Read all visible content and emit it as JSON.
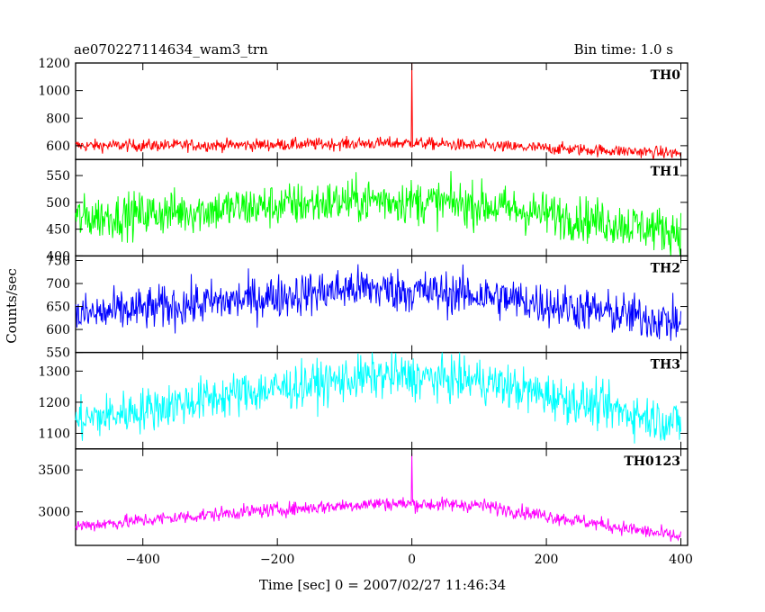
{
  "header": {
    "title": "ae070227114634_wam3_trn",
    "bin_time": "Bin time: 1.0 s"
  },
  "chart_data": {
    "type": "line",
    "xlabel": "Time [sec] 0 = 2007/02/27 11:46:34",
    "ylabel": "Counts/sec",
    "xlim": [
      -500,
      410
    ],
    "xticks": [
      -400,
      -200,
      0,
      200,
      400
    ],
    "xtick_labels": [
      "−400",
      "−200",
      "0",
      "200",
      "400"
    ],
    "data_range": [
      -500,
      400
    ],
    "grid": false,
    "panels": [
      {
        "name": "TH0",
        "color": "#ff0000",
        "ylim": [
          500,
          1200
        ],
        "yticks": [
          600,
          800,
          1000,
          1200
        ],
        "profile": [
          [
            -500,
            600
          ],
          [
            -250,
            605
          ],
          [
            0,
            620
          ],
          [
            100,
            600
          ],
          [
            400,
            545
          ]
        ],
        "noise": 45,
        "spike": {
          "x": 0,
          "y": 1200
        }
      },
      {
        "name": "TH1",
        "color": "#00ff00",
        "ylim": [
          400,
          580
        ],
        "yticks": [
          400,
          450,
          500,
          550
        ],
        "profile": [
          [
            -500,
            470
          ],
          [
            -250,
            490
          ],
          [
            -50,
            505
          ],
          [
            100,
            495
          ],
          [
            400,
            445
          ]
        ],
        "noise": 42,
        "spike": null
      },
      {
        "name": "TH2",
        "color": "#0000ff",
        "ylim": [
          550,
          760
        ],
        "yticks": [
          550,
          600,
          650,
          700,
          750
        ],
        "profile": [
          [
            -500,
            630
          ],
          [
            -250,
            665
          ],
          [
            -80,
            690
          ],
          [
            100,
            675
          ],
          [
            400,
            615
          ]
        ],
        "noise": 48,
        "spike": null
      },
      {
        "name": "TH3",
        "color": "#00ffff",
        "ylim": [
          1050,
          1360
        ],
        "yticks": [
          1100,
          1200,
          1300
        ],
        "profile": [
          [
            -500,
            1140
          ],
          [
            -250,
            1230
          ],
          [
            -50,
            1285
          ],
          [
            100,
            1270
          ],
          [
            400,
            1130
          ]
        ],
        "noise": 72,
        "spike": null
      },
      {
        "name": "TH0123",
        "color": "#ff00ff",
        "ylim": [
          2600,
          3750
        ],
        "yticks": [
          3000,
          3500
        ],
        "profile": [
          [
            -500,
            2830
          ],
          [
            -250,
            3000
          ],
          [
            -50,
            3100
          ],
          [
            100,
            3080
          ],
          [
            400,
            2700
          ]
        ],
        "noise": 85,
        "spike": {
          "x": 0,
          "y": 3700
        }
      }
    ]
  }
}
